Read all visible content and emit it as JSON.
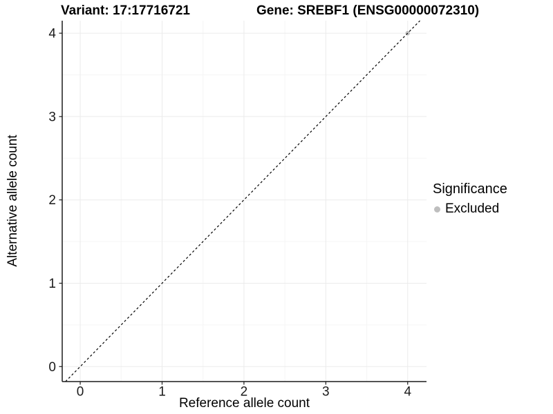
{
  "chart_data": {
    "type": "scatter",
    "titles": [
      "Variant: 17:17716721",
      "Gene: SREBF1 (ENSG00000072310)"
    ],
    "xlabel": "Reference allele count",
    "ylabel": "Alternative allele count",
    "xlim": [
      -0.22,
      4.23
    ],
    "ylim": [
      -0.18,
      4.15
    ],
    "xticks": [
      0,
      1,
      2,
      3,
      4
    ],
    "yticks": [
      0,
      1,
      2,
      3,
      4
    ],
    "x_minor": [
      0.5,
      1.5,
      2.5,
      3.5
    ],
    "y_minor": [
      0.5,
      1.5,
      2.5,
      3.5
    ],
    "grid": {
      "major": true,
      "minor": true
    },
    "points": [
      {
        "x": 4,
        "y": 4,
        "series": "Excluded"
      }
    ],
    "series": [
      {
        "name": "Excluded",
        "color": "#bebebe"
      }
    ],
    "identity_line": {
      "slope": 1,
      "intercept": 0,
      "linetype": "dashed",
      "color": "#000000"
    },
    "legend": {
      "title": "Significance",
      "position": "right",
      "items": [
        {
          "label": "Excluded",
          "color": "#bebebe"
        }
      ]
    },
    "colors": {
      "grid_major": "#ebebeb",
      "grid_minor": "#f5f5f5",
      "axis": "#1a1a1a",
      "tick": "#1a1a1a",
      "panel_background": "#ffffff"
    }
  }
}
